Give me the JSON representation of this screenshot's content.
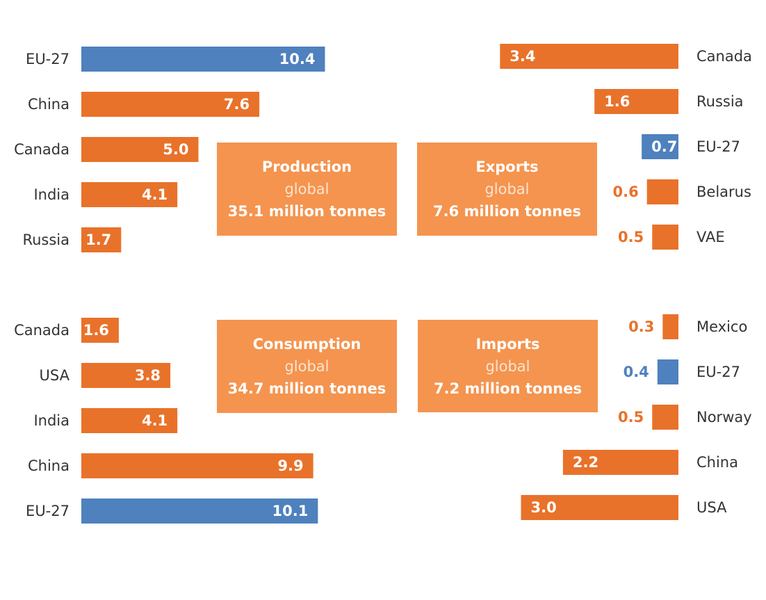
{
  "colors": {
    "eu": "#4e81bd",
    "other": "#e8722a",
    "box": "#f4944f",
    "label_dark": "#333333"
  },
  "chart_data": [
    {
      "type": "bar",
      "orientation": "horizontal",
      "panel": "production",
      "title": "Production",
      "subtitle": "global",
      "total": "35.1 million tonnes",
      "categories": [
        "EU-27",
        "China",
        "Canada",
        "India",
        "Russia"
      ],
      "values": [
        10.4,
        7.6,
        5.0,
        4.1,
        1.7
      ],
      "highlight": [
        "EU-27"
      ]
    },
    {
      "type": "bar",
      "orientation": "horizontal",
      "panel": "exports",
      "title": "Exports",
      "subtitle": "global",
      "total": "7.6 million tonnes",
      "categories": [
        "Canada",
        "Russia",
        "EU-27",
        "Belarus",
        "VAE"
      ],
      "values": [
        3.4,
        1.6,
        0.7,
        0.6,
        0.5
      ],
      "highlight": [
        "EU-27"
      ]
    },
    {
      "type": "bar",
      "orientation": "horizontal",
      "panel": "consumption",
      "title": "Consumption",
      "subtitle": "global",
      "total": "34.7 million tonnes",
      "categories": [
        "Canada",
        "USA",
        "India",
        "China",
        "EU-27"
      ],
      "values": [
        1.6,
        3.8,
        4.1,
        9.9,
        10.1
      ],
      "highlight": [
        "EU-27"
      ]
    },
    {
      "type": "bar",
      "orientation": "horizontal",
      "panel": "imports",
      "title": "Imports",
      "subtitle": "global",
      "total": "7.2 million tonnes",
      "categories": [
        "Mexico",
        "EU-27",
        "Norway",
        "China",
        "USA"
      ],
      "values": [
        0.3,
        0.4,
        0.5,
        2.2,
        3.0
      ],
      "highlight": [
        "EU-27"
      ]
    }
  ]
}
